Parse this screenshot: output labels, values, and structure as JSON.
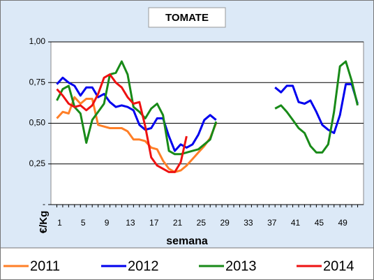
{
  "chart_data": {
    "type": "line",
    "title": "TOMATE",
    "x_label": "semana",
    "y_label": "€/Kg",
    "x": [
      1,
      2,
      3,
      4,
      5,
      6,
      7,
      8,
      9,
      10,
      11,
      12,
      13,
      14,
      15,
      16,
      17,
      18,
      19,
      20,
      21,
      22,
      23,
      24,
      25,
      26,
      27,
      28,
      29,
      30,
      31,
      32,
      33,
      34,
      35,
      36,
      37,
      38,
      39,
      40,
      41,
      42,
      43,
      44,
      45,
      46,
      47,
      48,
      49,
      50,
      51,
      52
    ],
    "xlim": [
      0,
      53
    ],
    "xticks": [
      1,
      5,
      9,
      13,
      17,
      21,
      25,
      29,
      33,
      37,
      41,
      45,
      49
    ],
    "ylim": [
      0,
      1
    ],
    "yticks": [
      {
        "value": 0,
        "label": "-"
      },
      {
        "value": 0.25,
        "label": "0,25"
      },
      {
        "value": 0.5,
        "label": "0,50"
      },
      {
        "value": 0.75,
        "label": "0,75"
      },
      {
        "value": 1,
        "label": "1,00"
      }
    ],
    "grid": true,
    "legend": "bottom",
    "series": [
      {
        "name": "2011",
        "color": "#ff7f27",
        "values": [
          0.53,
          0.57,
          0.56,
          0.66,
          0.62,
          0.65,
          0.65,
          0.49,
          0.48,
          0.47,
          0.47,
          0.47,
          0.45,
          0.4,
          0.4,
          0.39,
          0.35,
          0.34,
          0.27,
          0.22,
          0.2,
          0.21,
          0.24,
          0.28,
          0.32,
          0.36,
          0.41,
          0.5,
          null,
          null,
          null,
          null,
          null,
          null,
          null,
          null,
          null,
          null,
          null,
          null,
          null,
          null,
          null,
          null,
          null,
          null,
          null,
          null,
          null,
          null,
          null,
          null
        ]
      },
      {
        "name": "2012",
        "color": "#0000ee",
        "values": [
          0.74,
          0.78,
          0.75,
          0.73,
          0.67,
          0.72,
          0.72,
          0.66,
          0.68,
          0.63,
          0.6,
          0.61,
          0.6,
          0.58,
          0.49,
          0.46,
          0.47,
          0.53,
          0.53,
          0.42,
          0.33,
          0.37,
          0.35,
          0.37,
          0.43,
          0.52,
          0.55,
          0.52,
          null,
          null,
          null,
          null,
          null,
          null,
          null,
          null,
          null,
          0.72,
          0.69,
          0.73,
          0.73,
          0.63,
          0.62,
          0.64,
          0.57,
          0.49,
          0.46,
          0.44,
          0.55,
          0.74,
          0.74,
          0.62
        ]
      },
      {
        "name": "2013",
        "color": "#188a18",
        "values": [
          0.64,
          0.71,
          0.73,
          0.6,
          0.56,
          0.38,
          0.52,
          0.57,
          0.62,
          0.8,
          0.81,
          0.88,
          0.8,
          0.6,
          0.57,
          0.53,
          0.59,
          0.62,
          0.55,
          0.33,
          0.31,
          0.31,
          0.32,
          0.33,
          0.34,
          0.37,
          0.4,
          0.51,
          null,
          null,
          null,
          null,
          null,
          null,
          null,
          null,
          null,
          0.59,
          0.61,
          0.57,
          0.52,
          0.47,
          0.44,
          0.36,
          0.32,
          0.32,
          0.37,
          0.57,
          0.85,
          0.88,
          0.76,
          0.61
        ]
      },
      {
        "name": "2014",
        "color": "#ee1111",
        "values": [
          0.71,
          0.67,
          0.62,
          0.6,
          0.61,
          0.58,
          0.61,
          0.68,
          0.78,
          0.8,
          0.75,
          0.72,
          0.66,
          0.62,
          0.63,
          0.48,
          0.29,
          0.24,
          0.22,
          0.2,
          0.2,
          0.26,
          0.42,
          null,
          null,
          null,
          null,
          null,
          null,
          null,
          null,
          null,
          null,
          null,
          null,
          null,
          null,
          null,
          null,
          null,
          null,
          null,
          null,
          null,
          null,
          null,
          null,
          null,
          null,
          null,
          null,
          null
        ]
      }
    ]
  }
}
